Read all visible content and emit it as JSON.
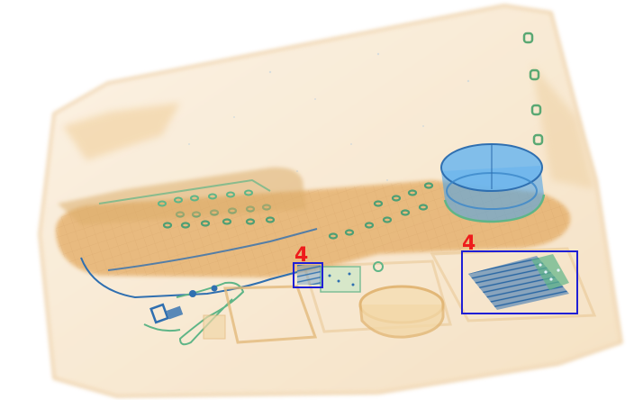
{
  "image": {
    "kind": "xray-baggage-scan",
    "background_color": "#ffffff",
    "accent_colors": {
      "organic": "#e9b97a",
      "organic_light": "#f4dcb4",
      "inorganic": "#4fa3e6",
      "dense": "#2f6fb0",
      "mixed": "#5fb587"
    }
  },
  "detections": [
    {
      "label": "4",
      "box_color": "#1f1fd6",
      "label_color": "#ee1c1c"
    },
    {
      "label": "4",
      "box_color": "#1f1fd6",
      "label_color": "#ee1c1c"
    }
  ]
}
